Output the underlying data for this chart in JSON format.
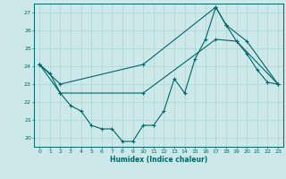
{
  "xlabel": "Humidex (Indice chaleur)",
  "bg_color": "#cce8e8",
  "line_color": "#006666",
  "grid_color": "#add4d4",
  "xlim": [
    -0.5,
    23.5
  ],
  "ylim": [
    19.5,
    27.5
  ],
  "xticks": [
    0,
    1,
    2,
    3,
    4,
    5,
    6,
    7,
    8,
    9,
    10,
    11,
    12,
    13,
    14,
    15,
    16,
    17,
    18,
    19,
    20,
    21,
    22,
    23
  ],
  "yticks": [
    20,
    21,
    22,
    23,
    24,
    25,
    26,
    27
  ],
  "line1": {
    "x": [
      0,
      1,
      2,
      3,
      4,
      5,
      6,
      7,
      8,
      9,
      10,
      11,
      12,
      13,
      14,
      15,
      16,
      17,
      18,
      19,
      20,
      21,
      22,
      23
    ],
    "y": [
      24.1,
      23.6,
      22.5,
      21.8,
      21.5,
      20.7,
      20.5,
      20.5,
      19.8,
      19.8,
      20.7,
      20.7,
      21.5,
      23.3,
      22.5,
      24.4,
      25.5,
      27.3,
      26.3,
      25.4,
      24.7,
      23.8,
      23.1,
      23.0
    ]
  },
  "line2": {
    "x": [
      0,
      2,
      10,
      17,
      18,
      20,
      23
    ],
    "y": [
      24.1,
      23.0,
      24.1,
      27.3,
      26.3,
      25.4,
      23.0
    ]
  },
  "line3": {
    "x": [
      0,
      2,
      10,
      17,
      19,
      23
    ],
    "y": [
      24.1,
      22.5,
      22.5,
      25.5,
      25.4,
      23.0
    ]
  }
}
